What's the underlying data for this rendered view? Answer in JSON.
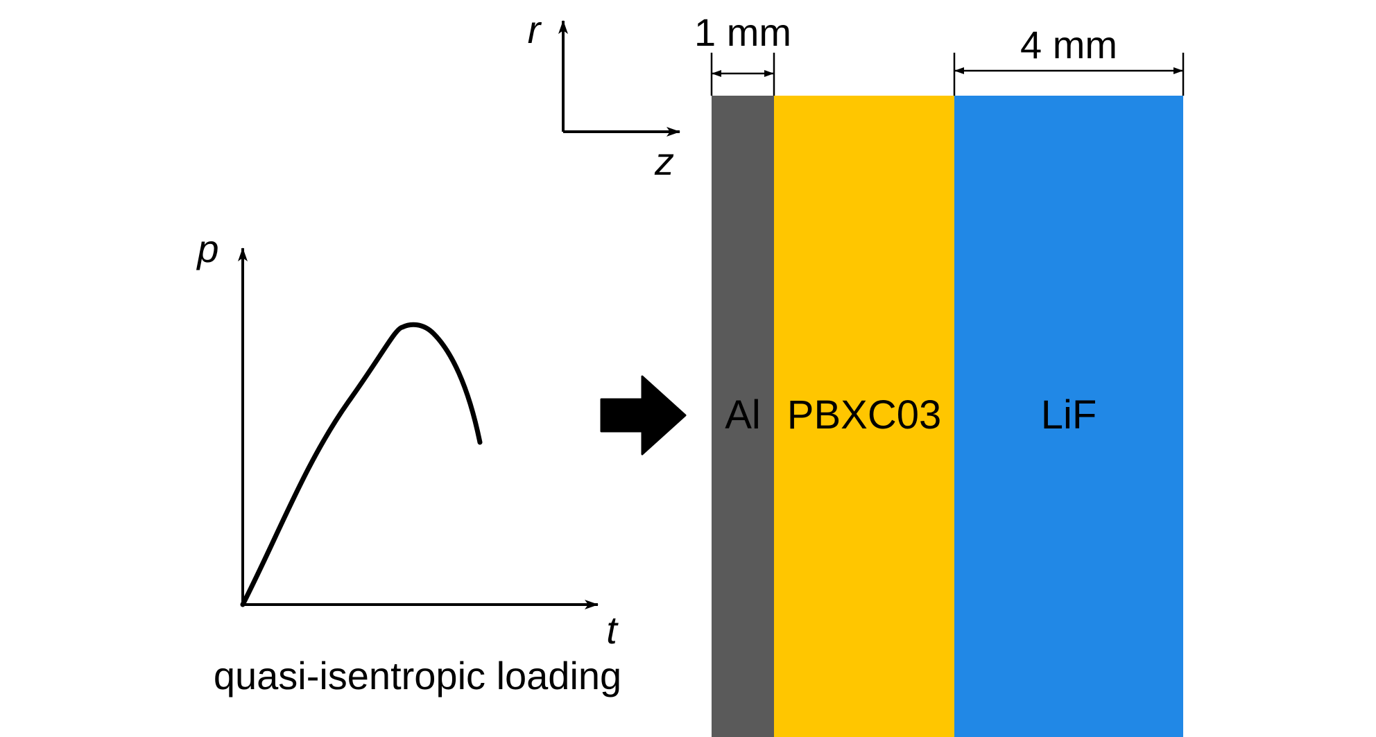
{
  "coordinate_frame": {
    "r_label": "r",
    "z_label": "z"
  },
  "loading_plot": {
    "y_label": "p",
    "x_label": "t",
    "caption": "quasi-isentropic loading"
  },
  "dimensions": {
    "al_thickness": "1 mm",
    "lif_thickness": "4 mm"
  },
  "layers": [
    {
      "label": "Al",
      "color": "#5a5a5a"
    },
    {
      "label": "PBXC03",
      "color": "#ffc600"
    },
    {
      "label": "LiF",
      "color": "#2188e6"
    }
  ],
  "colors": {
    "ink": "#000000",
    "background": "#ffffff"
  }
}
